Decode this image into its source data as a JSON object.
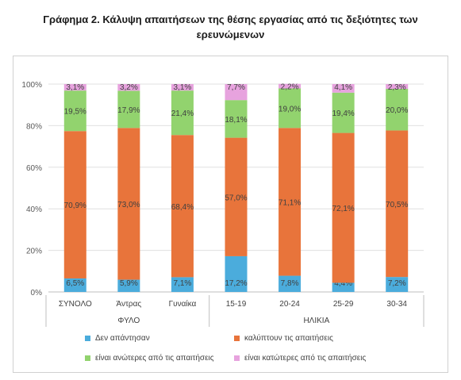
{
  "title": "Γράφημα 2. Κάλυψη απαιτήσεων της θέσης εργασίας από τις δεξιότητες των ερευνώμενων",
  "chart_data": {
    "type": "bar",
    "stacked": true,
    "categories": [
      "ΣΥΝΟΛΟ",
      "Άντρας",
      "Γυναίκα",
      "15-19",
      "20-24",
      "25-29",
      "30-34"
    ],
    "groups": [
      {
        "label": "ΦΥΛΟ",
        "categories": [
          "ΣΥΝΟΛΟ",
          "Άντρας",
          "Γυναίκα"
        ]
      },
      {
        "label": "ΗΛΙΚΙΑ",
        "categories": [
          "15-19",
          "20-24",
          "25-29",
          "30-34"
        ]
      }
    ],
    "yticks": [
      "0%",
      "20%",
      "40%",
      "60%",
      "80%",
      "100%"
    ],
    "ylim": [
      0,
      100
    ],
    "grid": true,
    "legend_position": "bottom",
    "series": [
      {
        "name": "Δεν απάντησαν",
        "color": "#4bacdc",
        "values": [
          6.5,
          5.9,
          7.1,
          17.2,
          7.8,
          4.4,
          7.2
        ],
        "labels": [
          "6,5%",
          "5,9%",
          "7,1%",
          "17,2%",
          "7,8%",
          "4,4%",
          "7,2%"
        ]
      },
      {
        "name": "καλύπτουν τις απαιτήσεις",
        "color": "#e8743b",
        "values": [
          70.9,
          73.0,
          68.4,
          57.0,
          71.1,
          72.1,
          70.5
        ],
        "labels": [
          "70,9%",
          "73,0%",
          "68,4%",
          "57,0%",
          "71,1%",
          "72,1%",
          "70,5%"
        ]
      },
      {
        "name": "είναι ανώτερες από τις απαιτήσεις",
        "color": "#92d36e",
        "values": [
          19.5,
          17.9,
          21.4,
          18.1,
          19.0,
          19.4,
          20.0
        ],
        "labels": [
          "19,5%",
          "17,9%",
          "21,4%",
          "18,1%",
          "19,0%",
          "19,4%",
          "20,0%"
        ]
      },
      {
        "name": "είναι κατώτερες από τις απαιτήσεις",
        "color": "#e7a3de",
        "values": [
          3.1,
          3.2,
          3.1,
          7.7,
          2.2,
          4.1,
          2.3
        ],
        "labels": [
          "3,1%",
          "3,2%",
          "3,1%",
          "7,7%",
          "2,2%",
          "4,1%",
          "2,3%"
        ]
      }
    ]
  }
}
